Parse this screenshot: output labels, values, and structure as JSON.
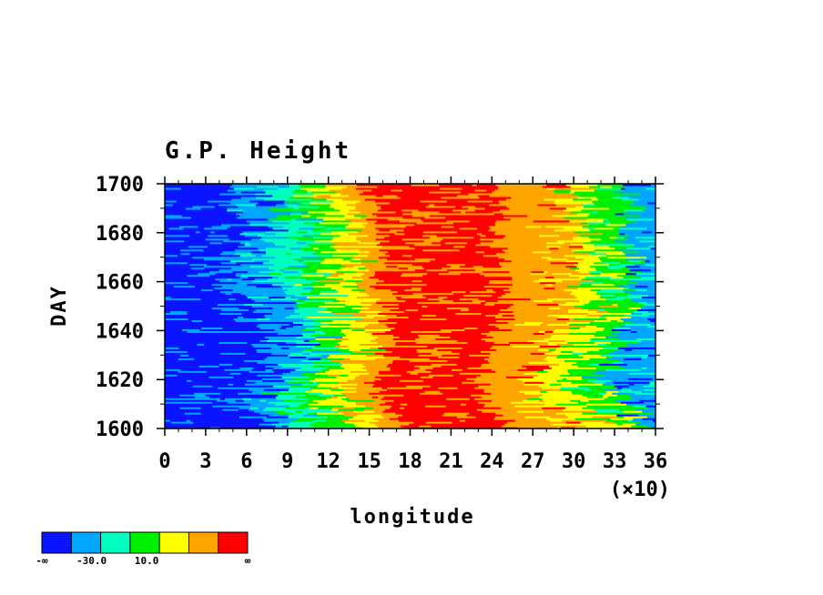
{
  "chart_data": {
    "type": "heatmap",
    "title": "G.P. Height",
    "xlabel": "longitude",
    "ylabel": "DAY",
    "x_multiplier_label": "(×10)",
    "xlim": [
      0,
      36
    ],
    "ylim": [
      1600,
      1700
    ],
    "x_ticks": [
      0,
      3,
      6,
      9,
      12,
      15,
      18,
      21,
      24,
      27,
      30,
      33,
      36
    ],
    "y_ticks": [
      1600,
      1620,
      1640,
      1660,
      1680,
      1700
    ],
    "colorbar": {
      "colors": [
        "#0a14ff",
        "#00a6ff",
        "#00ffbf",
        "#00ee00",
        "#ffff00",
        "#ffa500",
        "#ff0000"
      ],
      "labels": [
        "-∞",
        "-30.0",
        "10.0",
        "∞"
      ]
    },
    "bands": [
      {
        "day": 1600,
        "edges": [
          7.5,
          10.0,
          12.0,
          14.0,
          16.0,
          28.0,
          31.0,
          33.5,
          35.5
        ]
      },
      {
        "day": 1610,
        "edges": [
          5.5,
          8.0,
          9.5,
          11.5,
          14.0,
          25.5,
          28.0,
          31.0,
          34.0
        ]
      },
      {
        "day": 1620,
        "edges": [
          7.0,
          9.5,
          10.5,
          12.0,
          14.0,
          25.0,
          27.0,
          29.5,
          32.0
        ]
      },
      {
        "day": 1630,
        "edges": [
          8.0,
          10.5,
          11.5,
          13.0,
          15.0,
          26.0,
          28.0,
          30.0,
          33.0
        ]
      },
      {
        "day": 1640,
        "edges": [
          7.5,
          10.0,
          11.5,
          13.0,
          15.0,
          27.0,
          29.0,
          31.0,
          33.5
        ]
      },
      {
        "day": 1650,
        "edges": [
          7.0,
          9.5,
          11.0,
          13.0,
          15.5,
          28.0,
          30.0,
          32.0,
          34.5
        ]
      },
      {
        "day": 1660,
        "edges": [
          4.5,
          7.5,
          10.0,
          12.0,
          14.0,
          27.5,
          29.5,
          31.5,
          34.0
        ]
      },
      {
        "day": 1670,
        "edges": [
          5.0,
          7.5,
          10.5,
          12.5,
          15.0,
          27.0,
          30.0,
          32.0,
          34.5
        ]
      },
      {
        "day": 1680,
        "edges": [
          6.0,
          9.0,
          11.0,
          12.5,
          14.0,
          27.0,
          30.0,
          31.5,
          33.5
        ]
      },
      {
        "day": 1690,
        "edges": [
          5.0,
          8.0,
          10.5,
          12.0,
          14.0,
          28.0,
          29.5,
          31.5,
          34.0
        ]
      },
      {
        "day": 1700,
        "edges": [
          4.5,
          7.0,
          9.5,
          11.5,
          13.0,
          27.0,
          29.0,
          31.0,
          33.5
        ]
      }
    ]
  }
}
